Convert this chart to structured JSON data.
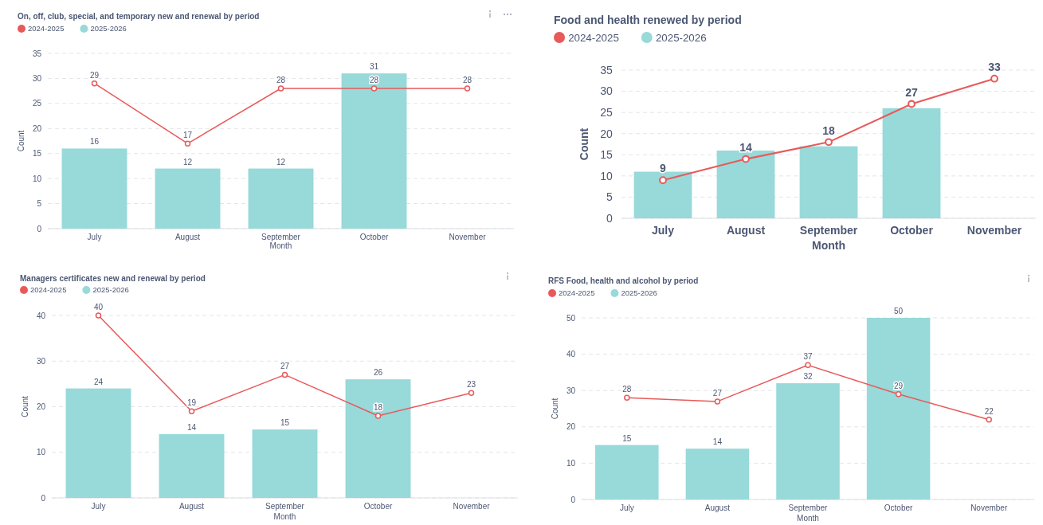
{
  "chart_data": [
    {
      "type": "bar",
      "title": "On, off, club, special, and temporary new and renewal by period",
      "xlabel": "Month",
      "ylabel": "Count",
      "categories": [
        "July",
        "August",
        "September",
        "October",
        "November"
      ],
      "ylim": [
        0,
        35
      ],
      "yticks": [
        0,
        5,
        10,
        15,
        20,
        25,
        30,
        35
      ],
      "grid": "y",
      "legend": "top left",
      "data_labels": true,
      "marker": "circle",
      "series": [
        {
          "name": "2024-2025",
          "type": "line",
          "color": "#e85a5a",
          "values": [
            29,
            17,
            28,
            28,
            28
          ]
        },
        {
          "name": "2025-2026",
          "type": "bar",
          "color": "#98d9d9",
          "values": [
            16,
            12,
            12,
            31,
            null
          ]
        }
      ]
    },
    {
      "type": "bar",
      "title": "Food and health renewed by period",
      "xlabel": "Month",
      "ylabel": "Count",
      "categories": [
        "July",
        "August",
        "September",
        "October",
        "November"
      ],
      "ylim": [
        0,
        35
      ],
      "yticks": [
        0,
        5,
        10,
        15,
        20,
        25,
        30,
        35
      ],
      "grid": "y",
      "legend": "top left",
      "marker": "circle",
      "series": [
        {
          "name": "2024-2025",
          "type": "line",
          "color": "#e85a5a",
          "values": [
            9,
            14,
            18,
            27,
            33
          ],
          "value_labels": [
            "9",
            "14",
            "18",
            "27",
            "33"
          ]
        },
        {
          "name": "2025-2026",
          "type": "bar",
          "color": "#98d9d9",
          "values": [
            11,
            16,
            17,
            26,
            null
          ]
        }
      ]
    },
    {
      "type": "bar",
      "title": "Managers certificates new and renewal by period",
      "xlabel": "Month",
      "ylabel": "Count",
      "categories": [
        "July",
        "August",
        "September",
        "October",
        "November"
      ],
      "ylim": [
        0,
        40
      ],
      "yticks": [
        0,
        10,
        20,
        30,
        40
      ],
      "grid": "y",
      "legend": "top left",
      "data_labels": true,
      "marker": "circle",
      "series": [
        {
          "name": "2024-2025",
          "type": "line",
          "color": "#e85a5a",
          "values": [
            40,
            19,
            27,
            18,
            23
          ]
        },
        {
          "name": "2025-2026",
          "type": "bar",
          "color": "#98d9d9",
          "values": [
            24,
            14,
            15,
            26,
            null
          ]
        }
      ]
    },
    {
      "type": "bar",
      "title": "RFS Food, health and alcohol by period",
      "xlabel": "Month",
      "ylabel": "Count",
      "categories": [
        "July",
        "August",
        "September",
        "October",
        "November"
      ],
      "ylim": [
        0,
        50
      ],
      "yticks": [
        0,
        10,
        20,
        30,
        40,
        50
      ],
      "grid": "y",
      "legend": "top left",
      "data_labels": true,
      "marker": "circle",
      "series": [
        {
          "name": "2024-2025",
          "type": "line",
          "color": "#e85a5a",
          "values": [
            28,
            27,
            37,
            29,
            22
          ]
        },
        {
          "name": "2025-2026",
          "type": "bar",
          "color": "#98d9d9",
          "values": [
            15,
            14,
            32,
            50,
            null
          ]
        }
      ]
    }
  ]
}
